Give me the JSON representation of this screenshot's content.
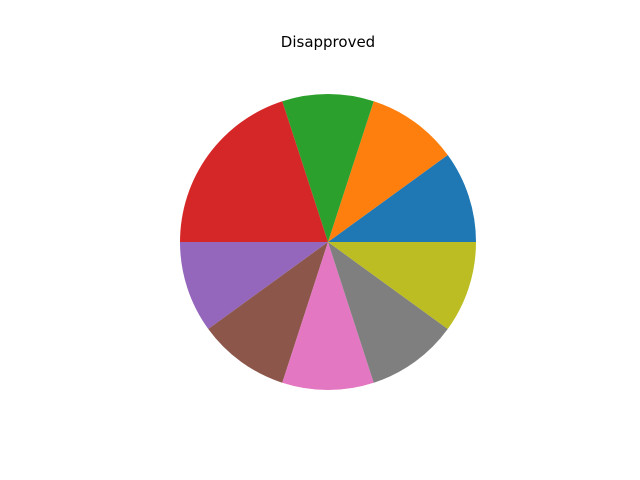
{
  "chart_data": {
    "type": "pie",
    "title": "Disapproved",
    "values": [
      1,
      1,
      1,
      2,
      1,
      1,
      1,
      1,
      1
    ],
    "colors": [
      "#1f77b4",
      "#ff7f0e",
      "#2ca02c",
      "#d62728",
      "#9467bd",
      "#8c564b",
      "#e377c2",
      "#7f7f7f",
      "#bcbd22"
    ],
    "start_angle_deg": 0,
    "direction": "counterclockwise"
  }
}
